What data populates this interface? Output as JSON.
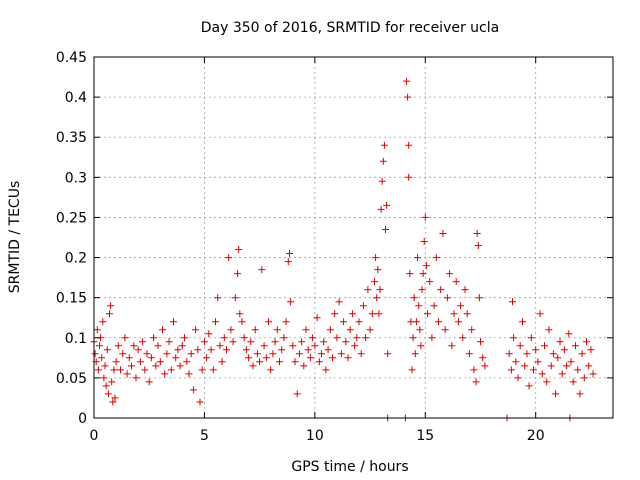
{
  "chart_data": {
    "type": "scatter",
    "title": "Day 350 of 2016, SRMTID for receiver ucla",
    "xlabel": "GPS time / hours",
    "ylabel": "SRMTID / TECUs",
    "xlim": [
      0,
      23.5
    ],
    "ylim": [
      0,
      0.45
    ],
    "x_ticks": [
      0,
      5,
      10,
      15,
      20
    ],
    "x_tick_labels": [
      "0",
      "5",
      "10",
      "15",
      "20"
    ],
    "y_ticks": [
      0,
      0.05,
      0.1,
      0.15,
      0.2,
      0.25,
      0.3,
      0.35,
      0.4,
      0.45
    ],
    "y_tick_labels": [
      "0",
      "0.05",
      "0.1",
      "0.15",
      "0.2",
      "0.25",
      "0.3",
      "0.35",
      "0.4",
      "0.45"
    ],
    "grid": true,
    "marker": "+",
    "color": "#e00000",
    "series": [
      {
        "name": "SRMTID",
        "points": [
          [
            0.0,
            0.095
          ],
          [
            0.05,
            0.08
          ],
          [
            0.1,
            0.07
          ],
          [
            0.15,
            0.11
          ],
          [
            0.2,
            0.06
          ],
          [
            0.25,
            0.09
          ],
          [
            0.3,
            0.1
          ],
          [
            0.35,
            0.075
          ],
          [
            0.4,
            0.12
          ],
          [
            0.45,
            0.05
          ],
          [
            0.5,
            0.065
          ],
          [
            0.55,
            0.04
          ],
          [
            0.6,
            0.085
          ],
          [
            0.65,
            0.03
          ],
          [
            0.7,
            0.13
          ],
          [
            0.75,
            0.14
          ],
          [
            0.8,
            0.045
          ],
          [
            0.85,
            0.02
          ],
          [
            0.9,
            0.06
          ],
          [
            0.95,
            0.025
          ],
          [
            1.0,
            0.07
          ],
          [
            1.1,
            0.09
          ],
          [
            1.2,
            0.06
          ],
          [
            1.3,
            0.08
          ],
          [
            1.4,
            0.1
          ],
          [
            1.5,
            0.055
          ],
          [
            1.6,
            0.075
          ],
          [
            1.7,
            0.065
          ],
          [
            1.8,
            0.09
          ],
          [
            1.9,
            0.05
          ],
          [
            2.0,
            0.085
          ],
          [
            2.1,
            0.07
          ],
          [
            2.2,
            0.095
          ],
          [
            2.3,
            0.06
          ],
          [
            2.4,
            0.08
          ],
          [
            2.5,
            0.045
          ],
          [
            2.6,
            0.075
          ],
          [
            2.7,
            0.1
          ],
          [
            2.8,
            0.065
          ],
          [
            2.9,
            0.09
          ],
          [
            3.0,
            0.07
          ],
          [
            3.1,
            0.11
          ],
          [
            3.2,
            0.055
          ],
          [
            3.3,
            0.08
          ],
          [
            3.4,
            0.095
          ],
          [
            3.5,
            0.06
          ],
          [
            3.6,
            0.12
          ],
          [
            3.7,
            0.075
          ],
          [
            3.8,
            0.085
          ],
          [
            3.9,
            0.065
          ],
          [
            4.0,
            0.09
          ],
          [
            4.1,
            0.1
          ],
          [
            4.2,
            0.07
          ],
          [
            4.3,
            0.055
          ],
          [
            4.4,
            0.08
          ],
          [
            4.5,
            0.035
          ],
          [
            4.6,
            0.11
          ],
          [
            4.7,
            0.085
          ],
          [
            4.8,
            0.02
          ],
          [
            4.9,
            0.06
          ],
          [
            5.0,
            0.095
          ],
          [
            5.1,
            0.075
          ],
          [
            5.2,
            0.105
          ],
          [
            5.3,
            0.085
          ],
          [
            5.4,
            0.06
          ],
          [
            5.5,
            0.12
          ],
          [
            5.6,
            0.15
          ],
          [
            5.7,
            0.09
          ],
          [
            5.8,
            0.07
          ],
          [
            5.9,
            0.1
          ],
          [
            6.0,
            0.085
          ],
          [
            6.1,
            0.2
          ],
          [
            6.2,
            0.11
          ],
          [
            6.3,
            0.095
          ],
          [
            6.4,
            0.15
          ],
          [
            6.5,
            0.18
          ],
          [
            6.55,
            0.21
          ],
          [
            6.6,
            0.13
          ],
          [
            6.7,
            0.12
          ],
          [
            6.8,
            0.1
          ],
          [
            6.9,
            0.085
          ],
          [
            7.0,
            0.075
          ],
          [
            7.1,
            0.095
          ],
          [
            7.2,
            0.065
          ],
          [
            7.3,
            0.11
          ],
          [
            7.4,
            0.08
          ],
          [
            7.5,
            0.07
          ],
          [
            7.6,
            0.185
          ],
          [
            7.7,
            0.09
          ],
          [
            7.8,
            0.075
          ],
          [
            7.9,
            0.12
          ],
          [
            8.0,
            0.06
          ],
          [
            8.1,
            0.08
          ],
          [
            8.2,
            0.095
          ],
          [
            8.3,
            0.11
          ],
          [
            8.4,
            0.07
          ],
          [
            8.5,
            0.085
          ],
          [
            8.6,
            0.1
          ],
          [
            8.7,
            0.12
          ],
          [
            8.8,
            0.195
          ],
          [
            8.85,
            0.205
          ],
          [
            8.9,
            0.145
          ],
          [
            9.0,
            0.09
          ],
          [
            9.1,
            0.07
          ],
          [
            9.2,
            0.03
          ],
          [
            9.3,
            0.08
          ],
          [
            9.4,
            0.095
          ],
          [
            9.5,
            0.065
          ],
          [
            9.6,
            0.11
          ],
          [
            9.7,
            0.085
          ],
          [
            9.8,
            0.075
          ],
          [
            9.9,
            0.1
          ],
          [
            10.0,
            0.09
          ],
          [
            10.1,
            0.125
          ],
          [
            10.2,
            0.07
          ],
          [
            10.3,
            0.08
          ],
          [
            10.4,
            0.095
          ],
          [
            10.5,
            0.06
          ],
          [
            10.6,
            0.085
          ],
          [
            10.7,
            0.11
          ],
          [
            10.8,
            0.075
          ],
          [
            10.9,
            0.13
          ],
          [
            11.0,
            0.1
          ],
          [
            11.1,
            0.145
          ],
          [
            11.2,
            0.08
          ],
          [
            11.3,
            0.12
          ],
          [
            11.4,
            0.095
          ],
          [
            11.5,
            0.075
          ],
          [
            11.6,
            0.11
          ],
          [
            11.7,
            0.13
          ],
          [
            11.8,
            0.09
          ],
          [
            11.9,
            0.1
          ],
          [
            12.0,
            0.12
          ],
          [
            12.1,
            0.08
          ],
          [
            12.2,
            0.14
          ],
          [
            12.3,
            0.1
          ],
          [
            12.4,
            0.16
          ],
          [
            12.5,
            0.11
          ],
          [
            12.6,
            0.13
          ],
          [
            12.7,
            0.17
          ],
          [
            12.75,
            0.2
          ],
          [
            12.8,
            0.15
          ],
          [
            12.85,
            0.185
          ],
          [
            12.9,
            0.13
          ],
          [
            12.95,
            0.16
          ],
          [
            13.0,
            0.26
          ],
          [
            13.05,
            0.295
          ],
          [
            13.1,
            0.32
          ],
          [
            13.15,
            0.34
          ],
          [
            13.2,
            0.235
          ],
          [
            13.25,
            0.265
          ],
          [
            13.3,
            0.08
          ],
          [
            13.3,
            0.0
          ],
          [
            14.1,
            0.0
          ],
          [
            14.15,
            0.42
          ],
          [
            14.2,
            0.4
          ],
          [
            14.25,
            0.34
          ],
          [
            14.25,
            0.3
          ],
          [
            14.3,
            0.18
          ],
          [
            14.35,
            0.12
          ],
          [
            14.4,
            0.06
          ],
          [
            14.45,
            0.1
          ],
          [
            14.5,
            0.15
          ],
          [
            14.55,
            0.08
          ],
          [
            14.6,
            0.12
          ],
          [
            14.65,
            0.2
          ],
          [
            14.7,
            0.14
          ],
          [
            14.75,
            0.11
          ],
          [
            14.8,
            0.09
          ],
          [
            14.85,
            0.16
          ],
          [
            14.9,
            0.18
          ],
          [
            14.95,
            0.22
          ],
          [
            15.0,
            0.25
          ],
          [
            15.05,
            0.19
          ],
          [
            15.1,
            0.13
          ],
          [
            15.2,
            0.17
          ],
          [
            15.3,
            0.1
          ],
          [
            15.4,
            0.14
          ],
          [
            15.5,
            0.2
          ],
          [
            15.6,
            0.12
          ],
          [
            15.7,
            0.16
          ],
          [
            15.8,
            0.23
          ],
          [
            15.9,
            0.11
          ],
          [
            16.0,
            0.15
          ],
          [
            16.1,
            0.18
          ],
          [
            16.2,
            0.09
          ],
          [
            16.3,
            0.13
          ],
          [
            16.4,
            0.17
          ],
          [
            16.5,
            0.12
          ],
          [
            16.6,
            0.14
          ],
          [
            16.7,
            0.1
          ],
          [
            16.8,
            0.16
          ],
          [
            16.9,
            0.13
          ],
          [
            17.0,
            0.08
          ],
          [
            17.1,
            0.11
          ],
          [
            17.2,
            0.06
          ],
          [
            17.3,
            0.045
          ],
          [
            17.35,
            0.23
          ],
          [
            17.4,
            0.215
          ],
          [
            17.45,
            0.15
          ],
          [
            17.5,
            0.095
          ],
          [
            17.6,
            0.075
          ],
          [
            17.7,
            0.065
          ],
          [
            18.7,
            0.0
          ],
          [
            18.8,
            0.08
          ],
          [
            18.9,
            0.06
          ],
          [
            18.95,
            0.145
          ],
          [
            19.0,
            0.1
          ],
          [
            19.1,
            0.07
          ],
          [
            19.2,
            0.05
          ],
          [
            19.3,
            0.09
          ],
          [
            19.4,
            0.12
          ],
          [
            19.5,
            0.065
          ],
          [
            19.6,
            0.08
          ],
          [
            19.7,
            0.04
          ],
          [
            19.8,
            0.1
          ],
          [
            19.9,
            0.06
          ],
          [
            20.0,
            0.085
          ],
          [
            20.1,
            0.07
          ],
          [
            20.2,
            0.13
          ],
          [
            20.3,
            0.055
          ],
          [
            20.4,
            0.09
          ],
          [
            20.5,
            0.045
          ],
          [
            20.6,
            0.11
          ],
          [
            20.7,
            0.065
          ],
          [
            20.8,
            0.08
          ],
          [
            20.9,
            0.03
          ],
          [
            21.0,
            0.075
          ],
          [
            21.1,
            0.095
          ],
          [
            21.2,
            0.055
          ],
          [
            21.3,
            0.085
          ],
          [
            21.4,
            0.065
          ],
          [
            21.5,
            0.105
          ],
          [
            21.55,
            0.0
          ],
          [
            21.6,
            0.07
          ],
          [
            21.7,
            0.045
          ],
          [
            21.8,
            0.09
          ],
          [
            21.9,
            0.06
          ],
          [
            22.0,
            0.03
          ],
          [
            22.1,
            0.08
          ],
          [
            22.2,
            0.05
          ],
          [
            22.3,
            0.095
          ],
          [
            22.4,
            0.065
          ],
          [
            22.5,
            0.085
          ],
          [
            22.6,
            0.055
          ]
        ]
      }
    ]
  }
}
